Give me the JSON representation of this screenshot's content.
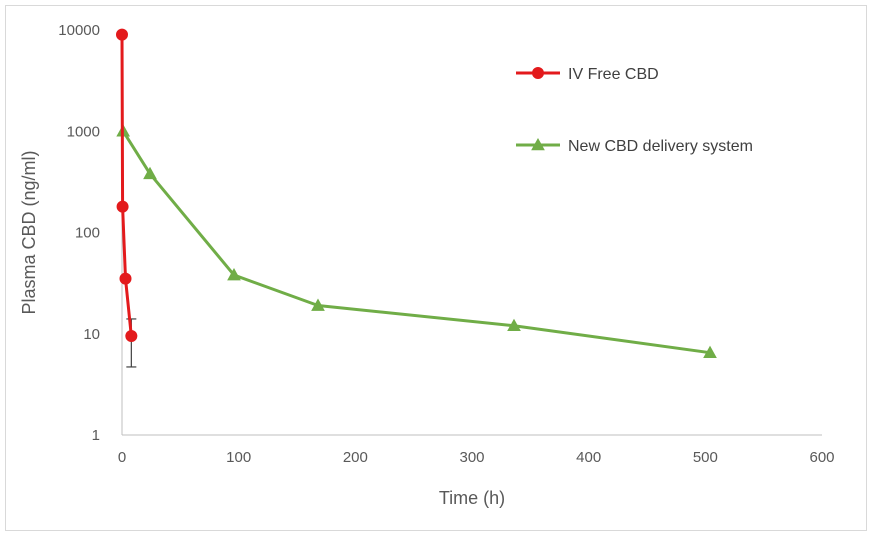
{
  "chart_data": {
    "type": "line",
    "xlabel": "Time (h)",
    "ylabel": "Plasma CBD (ng/ml)",
    "x_ticks": [
      "0",
      "100",
      "200",
      "300",
      "400",
      "500",
      "600"
    ],
    "y_ticks": [
      "1",
      "10",
      "100",
      "1000",
      "10000"
    ],
    "xlim": [
      0,
      600
    ],
    "ylim": [
      1,
      10000
    ],
    "y_scale": "log",
    "grid": false,
    "legend_position": "top-right",
    "series": [
      {
        "name": "IV Free CBD",
        "color": "#e31a1c",
        "marker": "circle",
        "x": [
          0,
          0.5,
          3,
          8
        ],
        "y": [
          9000,
          180,
          35,
          9.5
        ],
        "error_bars": [
          {
            "x": 8,
            "low": 4.7,
            "high": 14
          }
        ]
      },
      {
        "name": "New CBD delivery system",
        "color": "#70ad47",
        "marker": "triangle",
        "x": [
          1,
          24,
          96,
          168,
          336,
          504
        ],
        "y": [
          1000,
          380,
          38,
          19,
          12,
          6.5
        ]
      }
    ]
  }
}
